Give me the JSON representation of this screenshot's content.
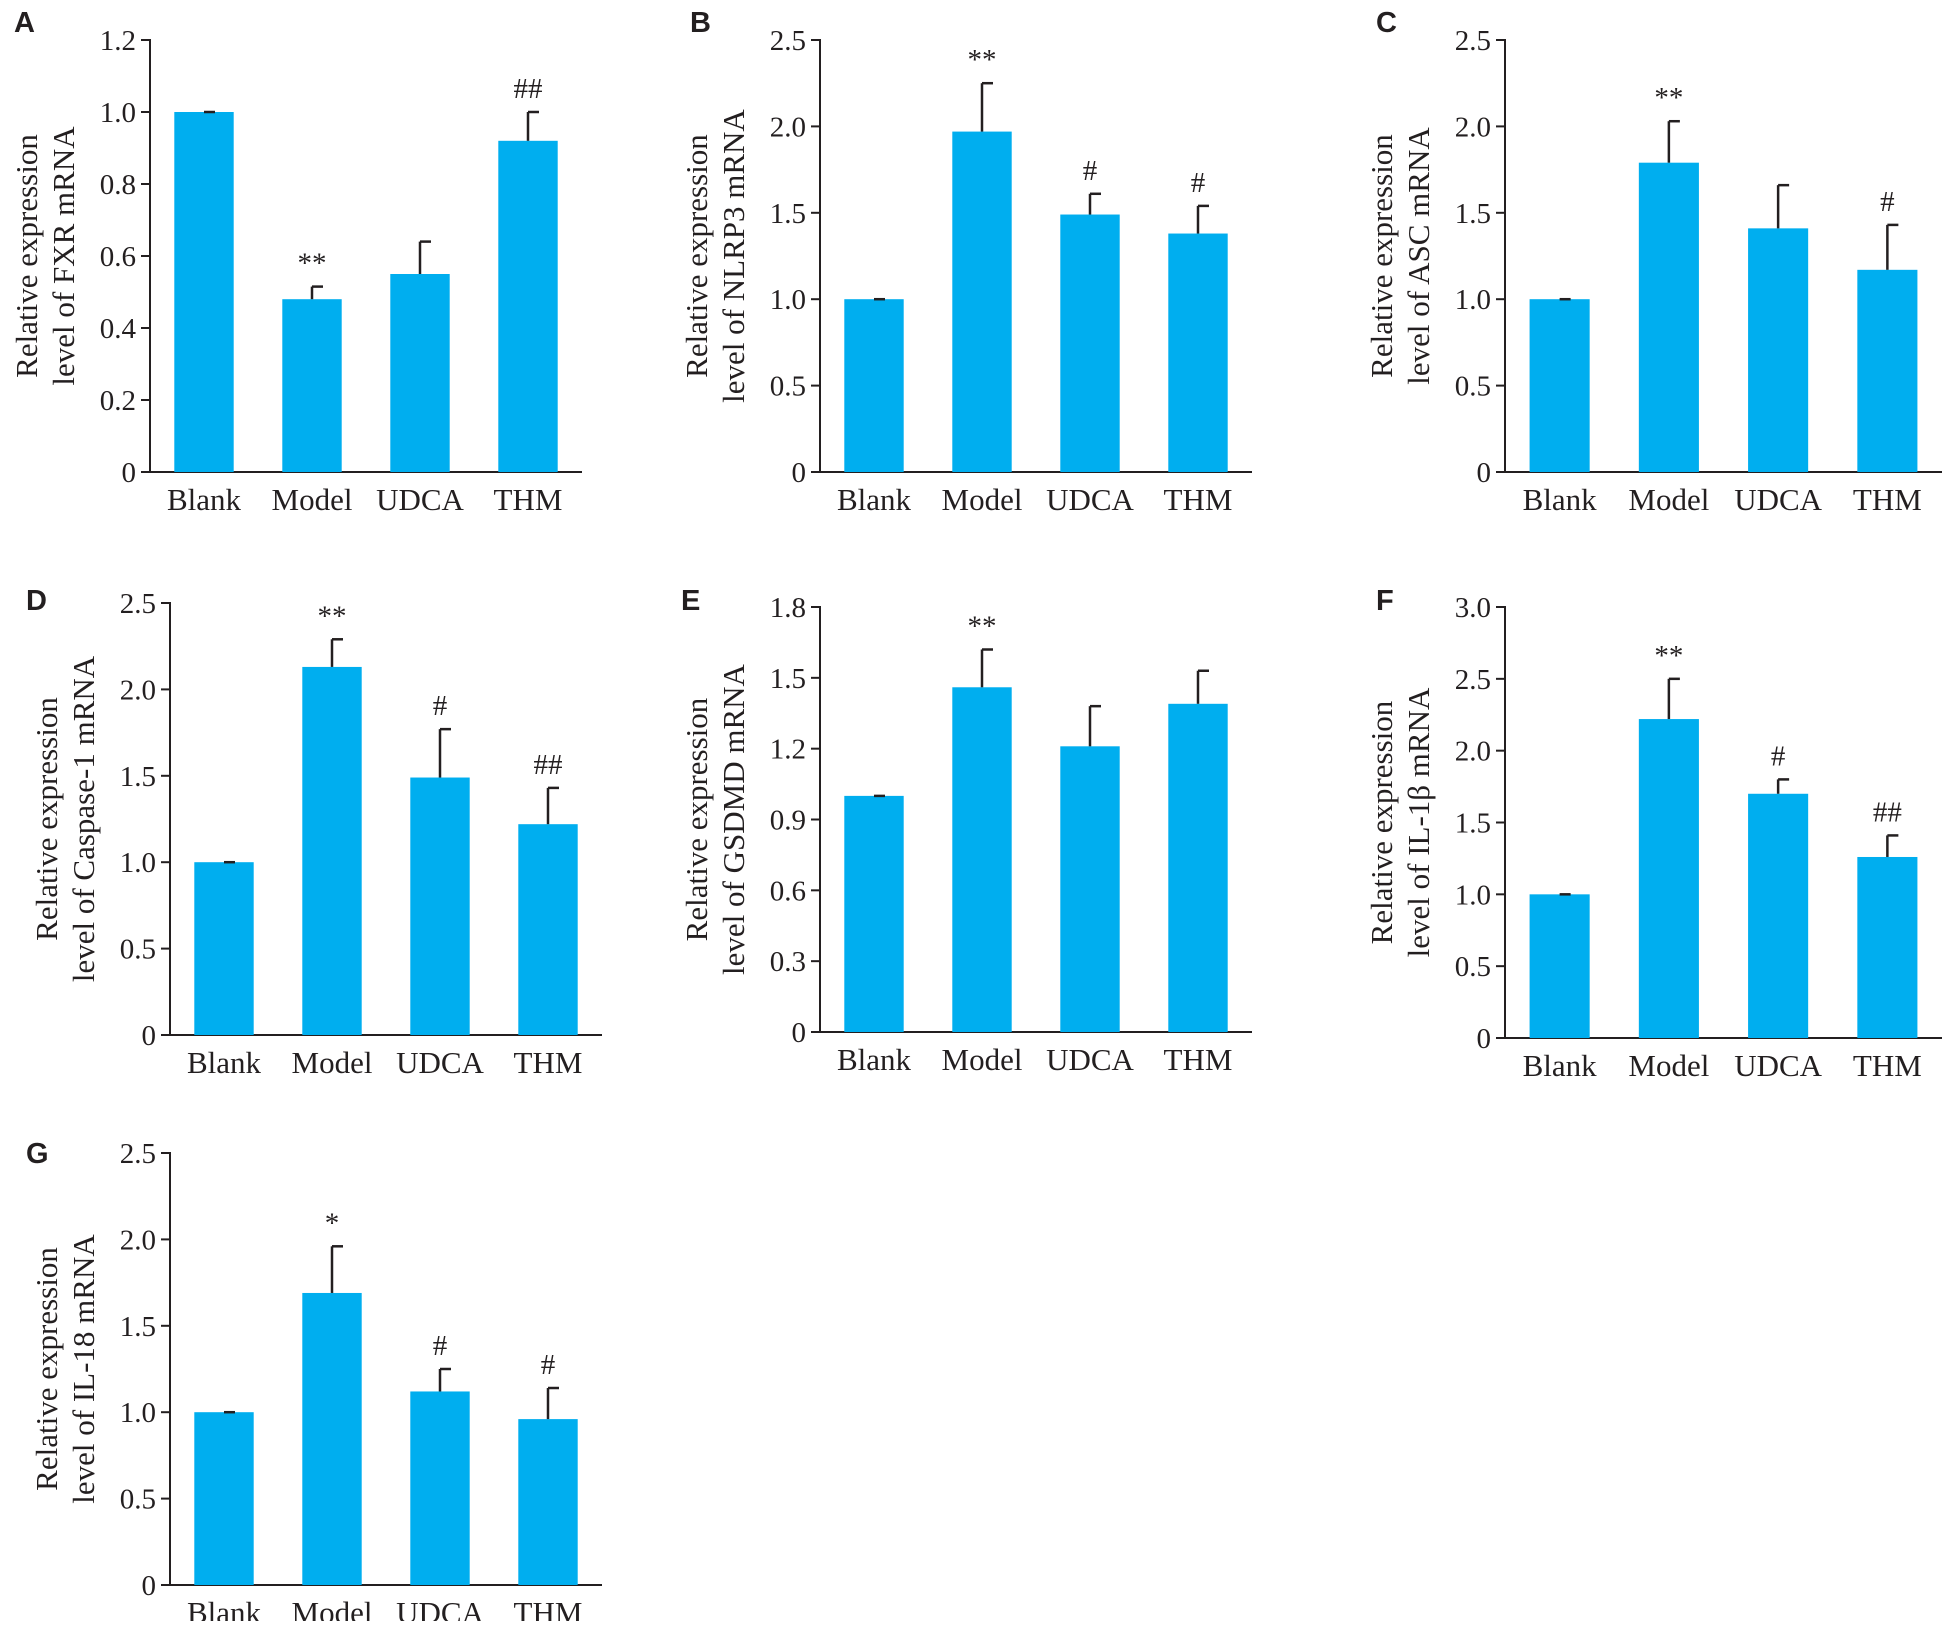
{
  "figure": {
    "background": "#ffffff"
  },
  "colors": {
    "bar": "#00aeef",
    "axis": "#231f20",
    "text": "#231f20"
  },
  "chart_data": [
    {
      "panel": "A",
      "type": "bar",
      "categories": [
        "Blank",
        "Model",
        "UDCA",
        "THM"
      ],
      "values": [
        1.0,
        0.48,
        0.55,
        0.92
      ],
      "errors": [
        0.0,
        0.035,
        0.09,
        0.08
      ],
      "significance": [
        "",
        "**",
        "",
        "##"
      ],
      "ylabel": [
        "Relative expression",
        "level of FXR mRNA"
      ],
      "ylim": [
        0,
        1.2
      ],
      "yticks": [
        0,
        0.2,
        0.4,
        0.6,
        0.8,
        1.0,
        1.2
      ],
      "ytick_labels": [
        "0",
        "0.2",
        "0.4",
        "0.6",
        "0.8",
        "1.0",
        "1.2"
      ]
    },
    {
      "panel": "B",
      "type": "bar",
      "categories": [
        "Blank",
        "Model",
        "UDCA",
        "THM"
      ],
      "values": [
        1.0,
        1.97,
        1.49,
        1.38
      ],
      "errors": [
        0.0,
        0.28,
        0.12,
        0.16
      ],
      "significance": [
        "",
        "**",
        "#",
        "#"
      ],
      "ylabel": [
        "Relative expression",
        "level of NLRP3 mRNA"
      ],
      "ylim": [
        0,
        2.5
      ],
      "yticks": [
        0,
        0.5,
        1.0,
        1.5,
        2.0,
        2.5
      ],
      "ytick_labels": [
        "0",
        "0.5",
        "1.0",
        "1.5",
        "2.0",
        "2.5"
      ]
    },
    {
      "panel": "C",
      "type": "bar",
      "categories": [
        "Blank",
        "Model",
        "UDCA",
        "THM"
      ],
      "values": [
        1.0,
        1.79,
        1.41,
        1.17
      ],
      "errors": [
        0.0,
        0.24,
        0.25,
        0.26
      ],
      "significance": [
        "",
        "**",
        "",
        "#"
      ],
      "ylabel": [
        "Relative expression",
        "level of ASC mRNA"
      ],
      "ylim": [
        0,
        2.5
      ],
      "yticks": [
        0,
        0.5,
        1.0,
        1.5,
        2.0,
        2.5
      ],
      "ytick_labels": [
        "0",
        "0.5",
        "1.0",
        "1.5",
        "2.0",
        "2.5"
      ]
    },
    {
      "panel": "D",
      "type": "bar",
      "categories": [
        "Blank",
        "Model",
        "UDCA",
        "THM"
      ],
      "values": [
        1.0,
        2.13,
        1.49,
        1.22
      ],
      "errors": [
        0.0,
        0.16,
        0.28,
        0.21
      ],
      "significance": [
        "",
        "**",
        "#",
        "##"
      ],
      "ylabel": [
        "Relative expression",
        "level of Caspase-1 mRNA"
      ],
      "ylim": [
        0,
        2.5
      ],
      "yticks": [
        0,
        0.5,
        1.0,
        1.5,
        2.0,
        2.5
      ],
      "ytick_labels": [
        "0",
        "0.5",
        "1.0",
        "1.5",
        "2.0",
        "2.5"
      ]
    },
    {
      "panel": "E",
      "type": "bar",
      "categories": [
        "Blank",
        "Model",
        "UDCA",
        "THM"
      ],
      "values": [
        1.0,
        1.46,
        1.21,
        1.39
      ],
      "errors": [
        0.0,
        0.16,
        0.17,
        0.14
      ],
      "significance": [
        "",
        "**",
        "",
        ""
      ],
      "ylabel": [
        "Relative expression",
        "level of GSDMD mRNA"
      ],
      "ylim": [
        0,
        1.8
      ],
      "yticks": [
        0,
        0.3,
        0.6,
        0.9,
        1.2,
        1.5,
        1.8
      ],
      "ytick_labels": [
        "0",
        "0.3",
        "0.6",
        "0.9",
        "1.2",
        "1.5",
        "1.8"
      ]
    },
    {
      "panel": "F",
      "type": "bar",
      "categories": [
        "Blank",
        "Model",
        "UDCA",
        "THM"
      ],
      "values": [
        1.0,
        2.22,
        1.7,
        1.26
      ],
      "errors": [
        0.0,
        0.28,
        0.1,
        0.15
      ],
      "significance": [
        "",
        "**",
        "#",
        "##"
      ],
      "ylabel": [
        "Relative expression",
        "level of IL-1β mRNA"
      ],
      "ylim": [
        0,
        3.0
      ],
      "yticks": [
        0,
        0.5,
        1.0,
        1.5,
        2.0,
        2.5,
        3.0
      ],
      "ytick_labels": [
        "0",
        "0.5",
        "1.0",
        "1.5",
        "2.0",
        "2.5",
        "3.0"
      ]
    },
    {
      "panel": "G",
      "type": "bar",
      "categories": [
        "Blank",
        "Model",
        "UDCA",
        "THM"
      ],
      "values": [
        1.0,
        1.69,
        1.12,
        0.96
      ],
      "errors": [
        0.0,
        0.27,
        0.13,
        0.18
      ],
      "significance": [
        "",
        "*",
        "#",
        "#"
      ],
      "ylabel": [
        "Relative expression",
        "level of IL-18 mRNA"
      ],
      "ylim": [
        0,
        2.5
      ],
      "yticks": [
        0,
        0.5,
        1.0,
        1.5,
        2.0,
        2.5
      ],
      "ytick_labels": [
        "0",
        "0.5",
        "1.0",
        "1.5",
        "2.0",
        "2.5"
      ]
    }
  ]
}
